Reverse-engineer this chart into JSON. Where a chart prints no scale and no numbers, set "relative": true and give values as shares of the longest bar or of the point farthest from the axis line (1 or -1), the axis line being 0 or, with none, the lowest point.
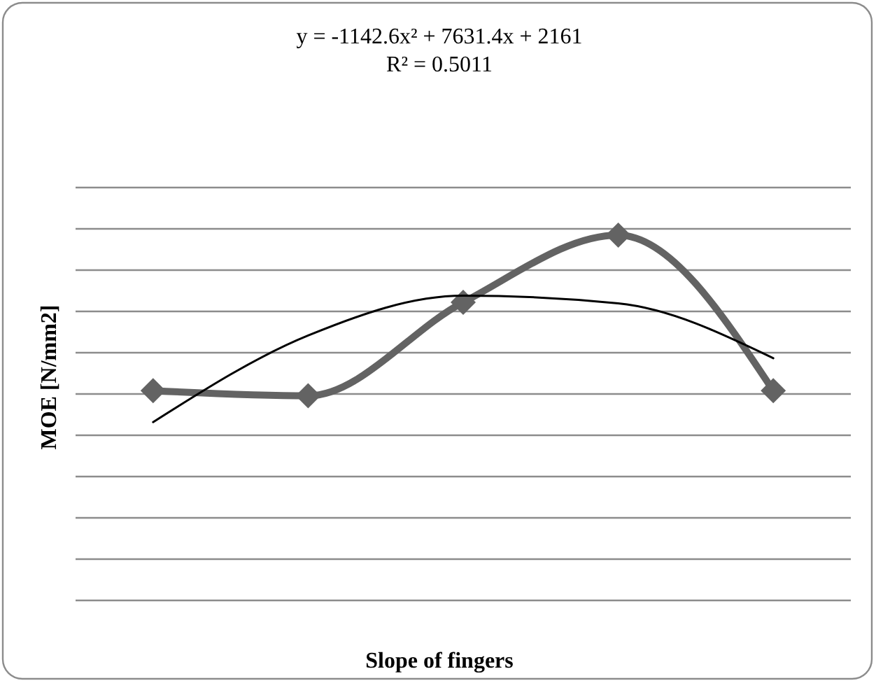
{
  "chart_data": {
    "type": "line",
    "relative": true,
    "xlabel": "Slope of fingers",
    "ylabel": "MOE [N/mm2]",
    "categories": [
      null,
      null,
      null,
      null,
      null
    ],
    "annotations": [
      "y = -1142.6x² + 7631.4x + 2161",
      "R² = 0.5011"
    ],
    "grid": true,
    "series": [
      {
        "color": "#636363",
        "values": [
          0.574,
          0.56,
          0.816,
          1,
          0.574
        ],
        "marker": "diamond",
        "line_style": "solid"
      },
      {
        "type": "line",
        "color": "#000000",
        "values": [
          0.488,
          0.725,
          0.834,
          0.813,
          0.663
        ],
        "marker": "none",
        "line_style": "solid"
      }
    ]
  }
}
